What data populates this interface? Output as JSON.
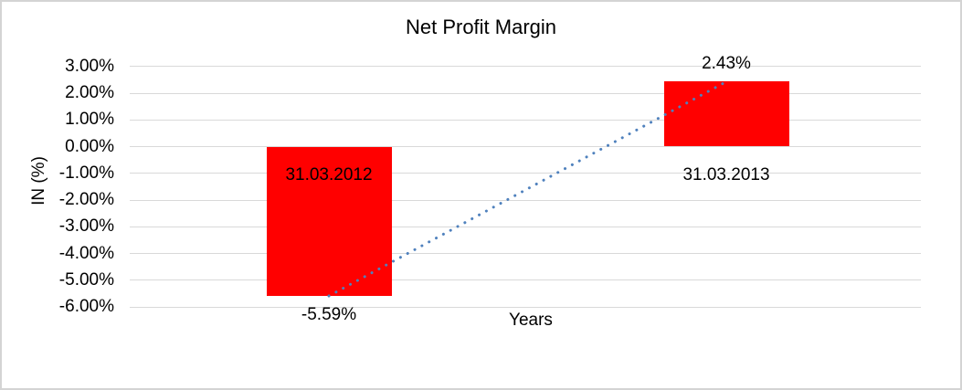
{
  "chart": {
    "title": "Net Profit Margin",
    "x_axis_title": "Years",
    "y_axis_title": "IN (%)"
  },
  "chart_data": {
    "type": "bar",
    "title": "Net Profit Margin",
    "xlabel": "Years",
    "ylabel": "IN (%)",
    "categories": [
      "31.03.2012",
      "31.03.2013"
    ],
    "series": [
      {
        "name": "Net Profit Margin",
        "values": [
          -5.59,
          2.43
        ],
        "color": "#FF0000"
      }
    ],
    "data_labels": [
      "-5.59%",
      "2.43%"
    ],
    "ytick_labels": [
      "3.00%",
      "2.00%",
      "1.00%",
      "0.00%",
      "-1.00%",
      "-2.00%",
      "-3.00%",
      "-4.00%",
      "-5.00%",
      "-6.00%"
    ],
    "ytick_values": [
      3,
      2,
      1,
      0,
      -1,
      -2,
      -3,
      -4,
      -5,
      -6
    ],
    "ylim": [
      -6,
      3
    ],
    "grid": true,
    "legend_position": "none",
    "trendline": {
      "type": "linear",
      "style": "dotted",
      "color": "#4F81BD",
      "points": [
        [
          0,
          -5.59
        ],
        [
          1,
          2.43
        ]
      ]
    },
    "colors": {
      "bar": "#FF0000",
      "gridline": "#D9D9D9",
      "text": "#000000",
      "trendline": "#4F81BD",
      "background": "#FFFFFF",
      "border": "#D4D4D4"
    }
  }
}
